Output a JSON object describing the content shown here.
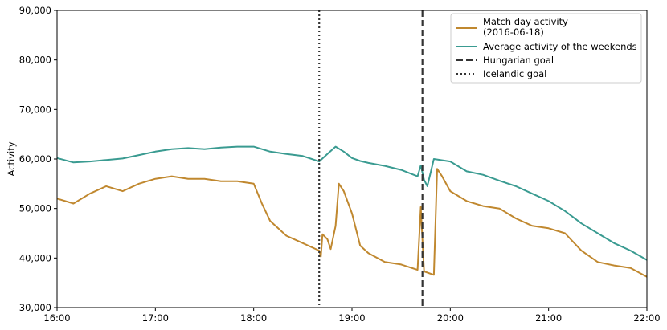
{
  "chart_data": {
    "type": "line",
    "xlabel": "",
    "ylabel": "Activity",
    "xlim": [
      "16:00",
      "22:00"
    ],
    "ylim": [
      30000,
      90000
    ],
    "x_ticks": [
      "16:00",
      "17:00",
      "18:00",
      "19:00",
      "20:00",
      "21:00",
      "22:00"
    ],
    "y_ticks": [
      "30,000",
      "40,000",
      "50,000",
      "60,000",
      "70,000",
      "80,000",
      "90,000"
    ],
    "y_tick_values": [
      30000,
      40000,
      50000,
      60000,
      70000,
      80000,
      90000
    ],
    "grid": false,
    "legend_position": "top-right",
    "series": [
      {
        "name": "Match day activity\n(2016-06-18)",
        "color": "#c0882f",
        "x": [
          "16:00",
          "16:10",
          "16:20",
          "16:30",
          "16:40",
          "16:50",
          "17:00",
          "17:10",
          "17:20",
          "17:30",
          "17:40",
          "17:50",
          "18:00",
          "18:05",
          "18:10",
          "18:20",
          "18:30",
          "18:40",
          "18:41",
          "18:42",
          "18:45",
          "18:47",
          "18:50",
          "18:52",
          "18:55",
          "19:00",
          "19:05",
          "19:10",
          "19:20",
          "19:30",
          "19:40",
          "19:42",
          "19:44",
          "19:50",
          "19:52",
          "19:55",
          "20:00",
          "20:10",
          "20:20",
          "20:30",
          "20:40",
          "20:50",
          "21:00",
          "21:10",
          "21:20",
          "21:30",
          "21:40",
          "21:50",
          "22:00"
        ],
        "values": [
          52000,
          51000,
          53000,
          54500,
          53500,
          55000,
          56000,
          56500,
          56000,
          56000,
          55500,
          55500,
          55000,
          51000,
          47500,
          44500,
          43000,
          41500,
          40300,
          44800,
          43800,
          41800,
          46500,
          55000,
          53500,
          49000,
          42500,
          41000,
          39200,
          38700,
          37600,
          50300,
          37300,
          36600,
          58000,
          56500,
          53500,
          51500,
          50500,
          50000,
          48000,
          46500,
          46000,
          45000,
          41500,
          39200,
          38500,
          38000,
          36200
        ]
      },
      {
        "name": "Average activity of the weekends",
        "color": "#3a9b91",
        "x": [
          "16:00",
          "16:10",
          "16:20",
          "16:30",
          "16:40",
          "16:50",
          "17:00",
          "17:10",
          "17:20",
          "17:30",
          "17:40",
          "17:50",
          "18:00",
          "18:10",
          "18:20",
          "18:30",
          "18:40",
          "18:45",
          "18:50",
          "18:55",
          "19:00",
          "19:05",
          "19:10",
          "19:20",
          "19:30",
          "19:40",
          "19:42",
          "19:44",
          "19:46",
          "19:50",
          "20:00",
          "20:10",
          "20:20",
          "20:30",
          "20:40",
          "20:50",
          "21:00",
          "21:10",
          "21:20",
          "21:30",
          "21:40",
          "21:50",
          "22:00"
        ],
        "values": [
          60200,
          59300,
          59500,
          59800,
          60100,
          60800,
          61500,
          62000,
          62200,
          62000,
          62300,
          62500,
          62500,
          61500,
          61000,
          60600,
          59500,
          61000,
          62500,
          61500,
          60200,
          59600,
          59200,
          58600,
          57800,
          56500,
          58700,
          55800,
          54500,
          60000,
          59500,
          57500,
          56800,
          55600,
          54500,
          53000,
          51500,
          49500,
          47000,
          45000,
          43000,
          41500,
          39600
        ]
      }
    ],
    "annotations": [
      {
        "type": "vline",
        "x": "18:40",
        "style": "dotted",
        "name": "Icelandic goal"
      },
      {
        "type": "vline",
        "x": "19:43",
        "style": "dashed",
        "name": "Hungarian goal"
      }
    ],
    "legend": {
      "entries": [
        {
          "label": "Match day activity\n(2016-06-18)",
          "style": "solid",
          "color": "#c0882f"
        },
        {
          "label": "Average activity of the weekends",
          "style": "solid",
          "color": "#3a9b91"
        },
        {
          "label": "Hungarian goal",
          "style": "dashed",
          "color": "#333333"
        },
        {
          "label": "Icelandic goal",
          "style": "dotted",
          "color": "#333333"
        }
      ]
    }
  }
}
